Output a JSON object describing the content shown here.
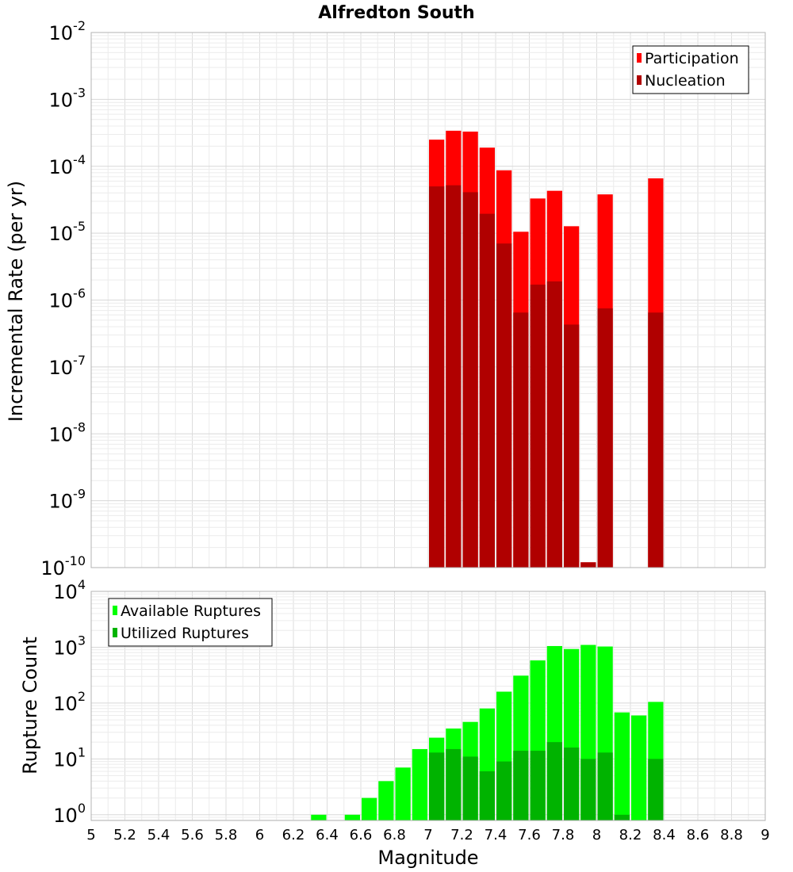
{
  "chart_data": [
    {
      "type": "bar",
      "title": "Alfredton South",
      "xlabel": "",
      "ylabel": "Incremental Rate (per yr)",
      "yscale": "log",
      "ylim": [
        1e-10,
        0.01
      ],
      "xlim": [
        5,
        9
      ],
      "grid": true,
      "legend_position": "top-right",
      "y_ticks": [
        {
          "base": "10",
          "exp": "-2",
          "value": 0.01
        },
        {
          "base": "10",
          "exp": "-3",
          "value": 0.001
        },
        {
          "base": "10",
          "exp": "-4",
          "value": 0.0001
        },
        {
          "base": "10",
          "exp": "-5",
          "value": 1e-05
        },
        {
          "base": "10",
          "exp": "-6",
          "value": 1e-06
        },
        {
          "base": "10",
          "exp": "-7",
          "value": 1e-07
        },
        {
          "base": "10",
          "exp": "-8",
          "value": 1e-08
        },
        {
          "base": "10",
          "exp": "-9",
          "value": 1e-09
        },
        {
          "base": "10",
          "exp": "-10",
          "value": 1e-10
        }
      ],
      "x": [
        7.05,
        7.15,
        7.25,
        7.35,
        7.45,
        7.55,
        7.65,
        7.75,
        7.85,
        7.95,
        8.05,
        8.35
      ],
      "series": [
        {
          "name": "Participation",
          "color": "#ff0000",
          "values": [
            0.00025,
            0.00034,
            0.00033,
            0.00019,
            8.7e-05,
            1.05e-05,
            3.3e-05,
            4.3e-05,
            1.27e-05,
            1.2e-10,
            3.8e-05,
            6.6e-05
          ]
        },
        {
          "name": "Nucleation",
          "color": "#b00000",
          "values": [
            5e-05,
            5.2e-05,
            4.1e-05,
            1.95e-05,
            7e-06,
            6.5e-07,
            1.7e-06,
            1.9e-06,
            4.3e-07,
            1.2e-10,
            7.5e-07,
            6.5e-07
          ]
        }
      ]
    },
    {
      "type": "bar",
      "title": "",
      "xlabel": "Magnitude",
      "ylabel": "Rupture Count",
      "yscale": "log",
      "ylim": [
        0.79,
        10000
      ],
      "xlim": [
        5,
        9
      ],
      "grid": true,
      "legend_position": "top-left",
      "x_tick_labels": [
        "5",
        "5.2",
        "5.4",
        "5.6",
        "5.8",
        "6",
        "6.2",
        "6.4",
        "6.6",
        "6.8",
        "7",
        "7.2",
        "7.4",
        "7.6",
        "7.8",
        "8",
        "8.2",
        "8.4",
        "8.6",
        "8.8",
        "9"
      ],
      "y_ticks": [
        {
          "base": "10",
          "exp": "4",
          "value": 10000
        },
        {
          "base": "10",
          "exp": "3",
          "value": 1000
        },
        {
          "base": "10",
          "exp": "2",
          "value": 100
        },
        {
          "base": "10",
          "exp": "1",
          "value": 10
        },
        {
          "base": "10",
          "exp": "0",
          "value": 1
        }
      ],
      "x": [
        6.35,
        6.55,
        6.65,
        6.75,
        6.85,
        6.95,
        7.05,
        7.15,
        7.25,
        7.35,
        7.45,
        7.55,
        7.65,
        7.75,
        7.85,
        7.95,
        8.05,
        8.15,
        8.25,
        8.35
      ],
      "series": [
        {
          "name": "Available Ruptures",
          "color": "#00ff00",
          "values": [
            1,
            1,
            2,
            4,
            7,
            15,
            24,
            35,
            46,
            80,
            160,
            310,
            580,
            1050,
            930,
            1100,
            1030,
            68,
            60,
            105
          ]
        },
        {
          "name": "Utilized Ruptures",
          "color": "#00b300",
          "values": [
            0,
            0,
            0,
            0,
            0,
            0,
            13,
            15,
            11,
            6,
            9,
            14,
            14,
            20,
            16,
            10,
            13,
            1,
            0,
            10
          ]
        }
      ]
    }
  ]
}
